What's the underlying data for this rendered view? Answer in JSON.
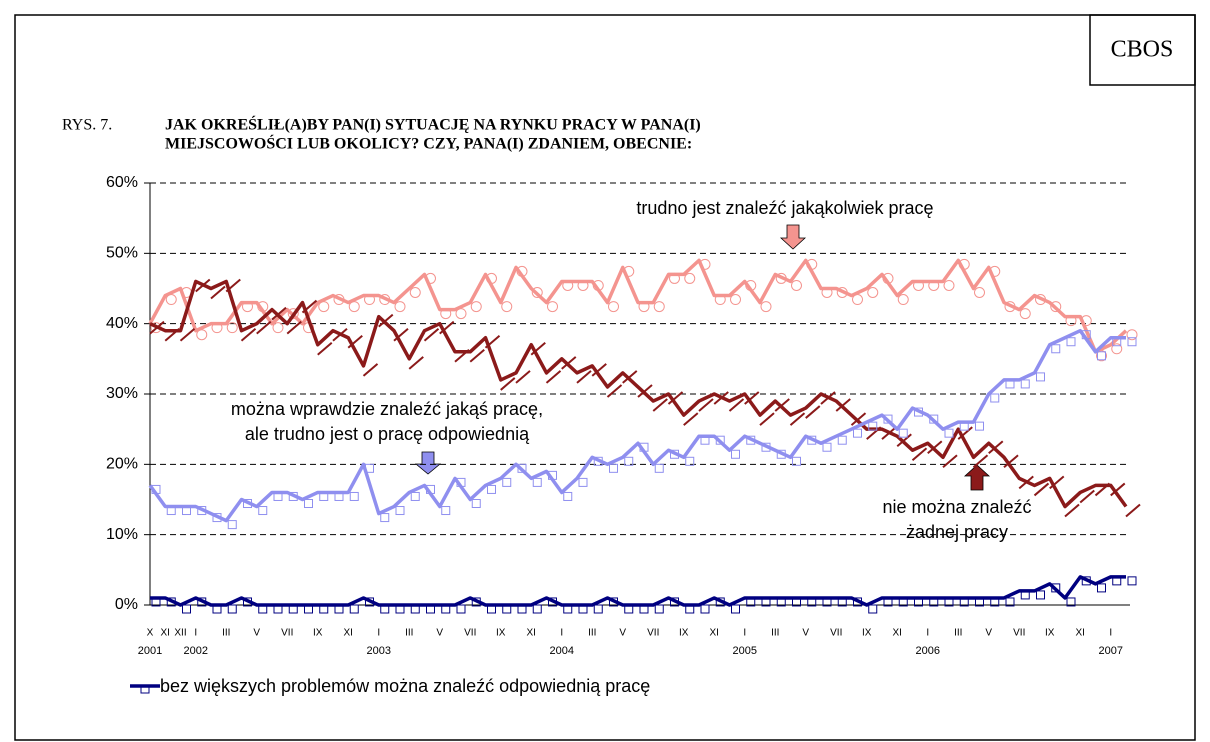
{
  "chart_data": {
    "type": "line",
    "badge": "CBOS",
    "figure_label": "RYS. 7.",
    "title_lines": [
      "JAK OKREŚLIŁ(A)BY PAN(I) SYTUACJĘ NA RYNKU PRACY W PANA(I)",
      "MIEJSCOWOŚCI LUB OKOLICY? CZY, PANA(I) ZDANIEM, OBECNIE:"
    ],
    "categories": [
      "X",
      "XI",
      "XII",
      "I",
      null,
      "III",
      null,
      "V",
      null,
      "VII",
      null,
      "IX",
      null,
      "XI",
      null,
      "I",
      null,
      "III",
      null,
      "V",
      null,
      "VII",
      null,
      "IX",
      null,
      "XI",
      null,
      "I",
      null,
      "III",
      null,
      "V",
      null,
      "VII",
      null,
      "IX",
      null,
      "XI",
      null,
      "I",
      null,
      "III",
      null,
      "V",
      null,
      "VII",
      null,
      "IX",
      null,
      "XI",
      null,
      "I",
      null,
      "III",
      null,
      "V",
      null,
      "VII",
      null,
      "IX",
      null,
      "XI",
      null,
      "I",
      null
    ],
    "category_years": [
      "2001",
      null,
      null,
      "2002",
      null,
      null,
      null,
      null,
      null,
      null,
      null,
      null,
      null,
      null,
      null,
      "2003",
      null,
      null,
      null,
      null,
      null,
      null,
      null,
      null,
      null,
      null,
      null,
      "2004",
      null,
      null,
      null,
      null,
      null,
      null,
      null,
      null,
      null,
      null,
      null,
      "2005",
      null,
      null,
      null,
      null,
      null,
      null,
      null,
      null,
      null,
      null,
      null,
      "2006",
      null,
      null,
      null,
      null,
      null,
      null,
      null,
      null,
      null,
      null,
      null,
      "2007",
      null
    ],
    "ylim": [
      0,
      60
    ],
    "yticks": [
      {
        "value": 0,
        "label": "0%"
      },
      {
        "value": 10,
        "label": "10%"
      },
      {
        "value": 20,
        "label": "20%"
      },
      {
        "value": 30,
        "label": "30%"
      },
      {
        "value": 40,
        "label": "40%"
      },
      {
        "value": 50,
        "label": "50%"
      },
      {
        "value": 60,
        "label": "60%"
      }
    ],
    "grid": true,
    "series": [
      {
        "color": "#f4948f",
        "marker": "circle",
        "values": [
          40,
          44,
          45,
          39,
          40,
          40,
          43,
          43,
          40,
          42,
          40,
          43,
          44,
          43,
          44,
          44,
          43,
          45,
          47,
          42,
          42,
          43,
          47,
          43,
          48,
          45,
          43,
          46,
          46,
          46,
          43,
          48,
          43,
          43,
          47,
          47,
          49,
          44,
          44,
          46,
          43,
          47,
          46,
          49,
          45,
          45,
          44,
          45,
          47,
          44,
          46,
          46,
          46,
          49,
          45,
          48,
          43,
          42,
          44,
          43,
          41,
          41,
          36,
          37,
          39
        ]
      },
      {
        "color": "#8b1a1a",
        "marker": "pencil",
        "values": [
          40,
          39,
          39,
          46,
          45,
          46,
          39,
          40,
          42,
          40,
          43,
          37,
          39,
          38,
          34,
          41,
          39,
          35,
          39,
          40,
          36,
          36,
          38,
          32,
          33,
          37,
          33,
          35,
          33,
          34,
          31,
          33,
          31,
          29,
          30,
          27,
          29,
          30,
          29,
          30,
          27,
          29,
          27,
          28,
          30,
          29,
          27,
          25,
          25,
          24,
          22,
          23,
          21,
          25,
          21,
          23,
          21,
          18,
          17,
          18,
          14,
          16,
          17,
          17,
          14
        ]
      },
      {
        "color": "#8f8fef",
        "marker": "square",
        "values": [
          17,
          14,
          14,
          14,
          13,
          12,
          15,
          14,
          16,
          16,
          15,
          16,
          16,
          16,
          20,
          13,
          14,
          16,
          17,
          14,
          18,
          15,
          17,
          18,
          20,
          18,
          19,
          16,
          18,
          21,
          20,
          21,
          23,
          20,
          22,
          21,
          24,
          24,
          22,
          24,
          23,
          22,
          21,
          24,
          23,
          24,
          25,
          26,
          27,
          25,
          28,
          27,
          25,
          26,
          26,
          30,
          32,
          32,
          33,
          37,
          38,
          39,
          36,
          38,
          38
        ]
      },
      {
        "name": "bez większych problemów można znaleźć odpowiednią pracę",
        "color": "#000080",
        "marker": "square",
        "values": [
          1,
          1,
          0,
          1,
          0,
          0,
          1,
          0,
          0,
          0,
          0,
          0,
          0,
          0,
          1,
          0,
          0,
          0,
          0,
          0,
          0,
          1,
          0,
          0,
          0,
          0,
          1,
          0,
          0,
          0,
          1,
          0,
          0,
          0,
          1,
          0,
          0,
          1,
          0,
          1,
          1,
          1,
          1,
          1,
          1,
          1,
          1,
          0,
          1,
          1,
          1,
          1,
          1,
          1,
          1,
          1,
          1,
          2,
          2,
          3,
          1,
          4,
          3,
          4,
          4
        ]
      }
    ],
    "annotations": [
      {
        "lines": [
          "trudno jest znaleźć jakąkolwiek pracę"
        ]
      },
      {
        "lines": [
          "można wprawdzie znaleźć jakąś pracę,",
          "ale trudno jest o pracę odpowiednią"
        ]
      },
      {
        "lines": [
          "nie można znaleźć",
          "żadnej pracy"
        ]
      }
    ]
  }
}
